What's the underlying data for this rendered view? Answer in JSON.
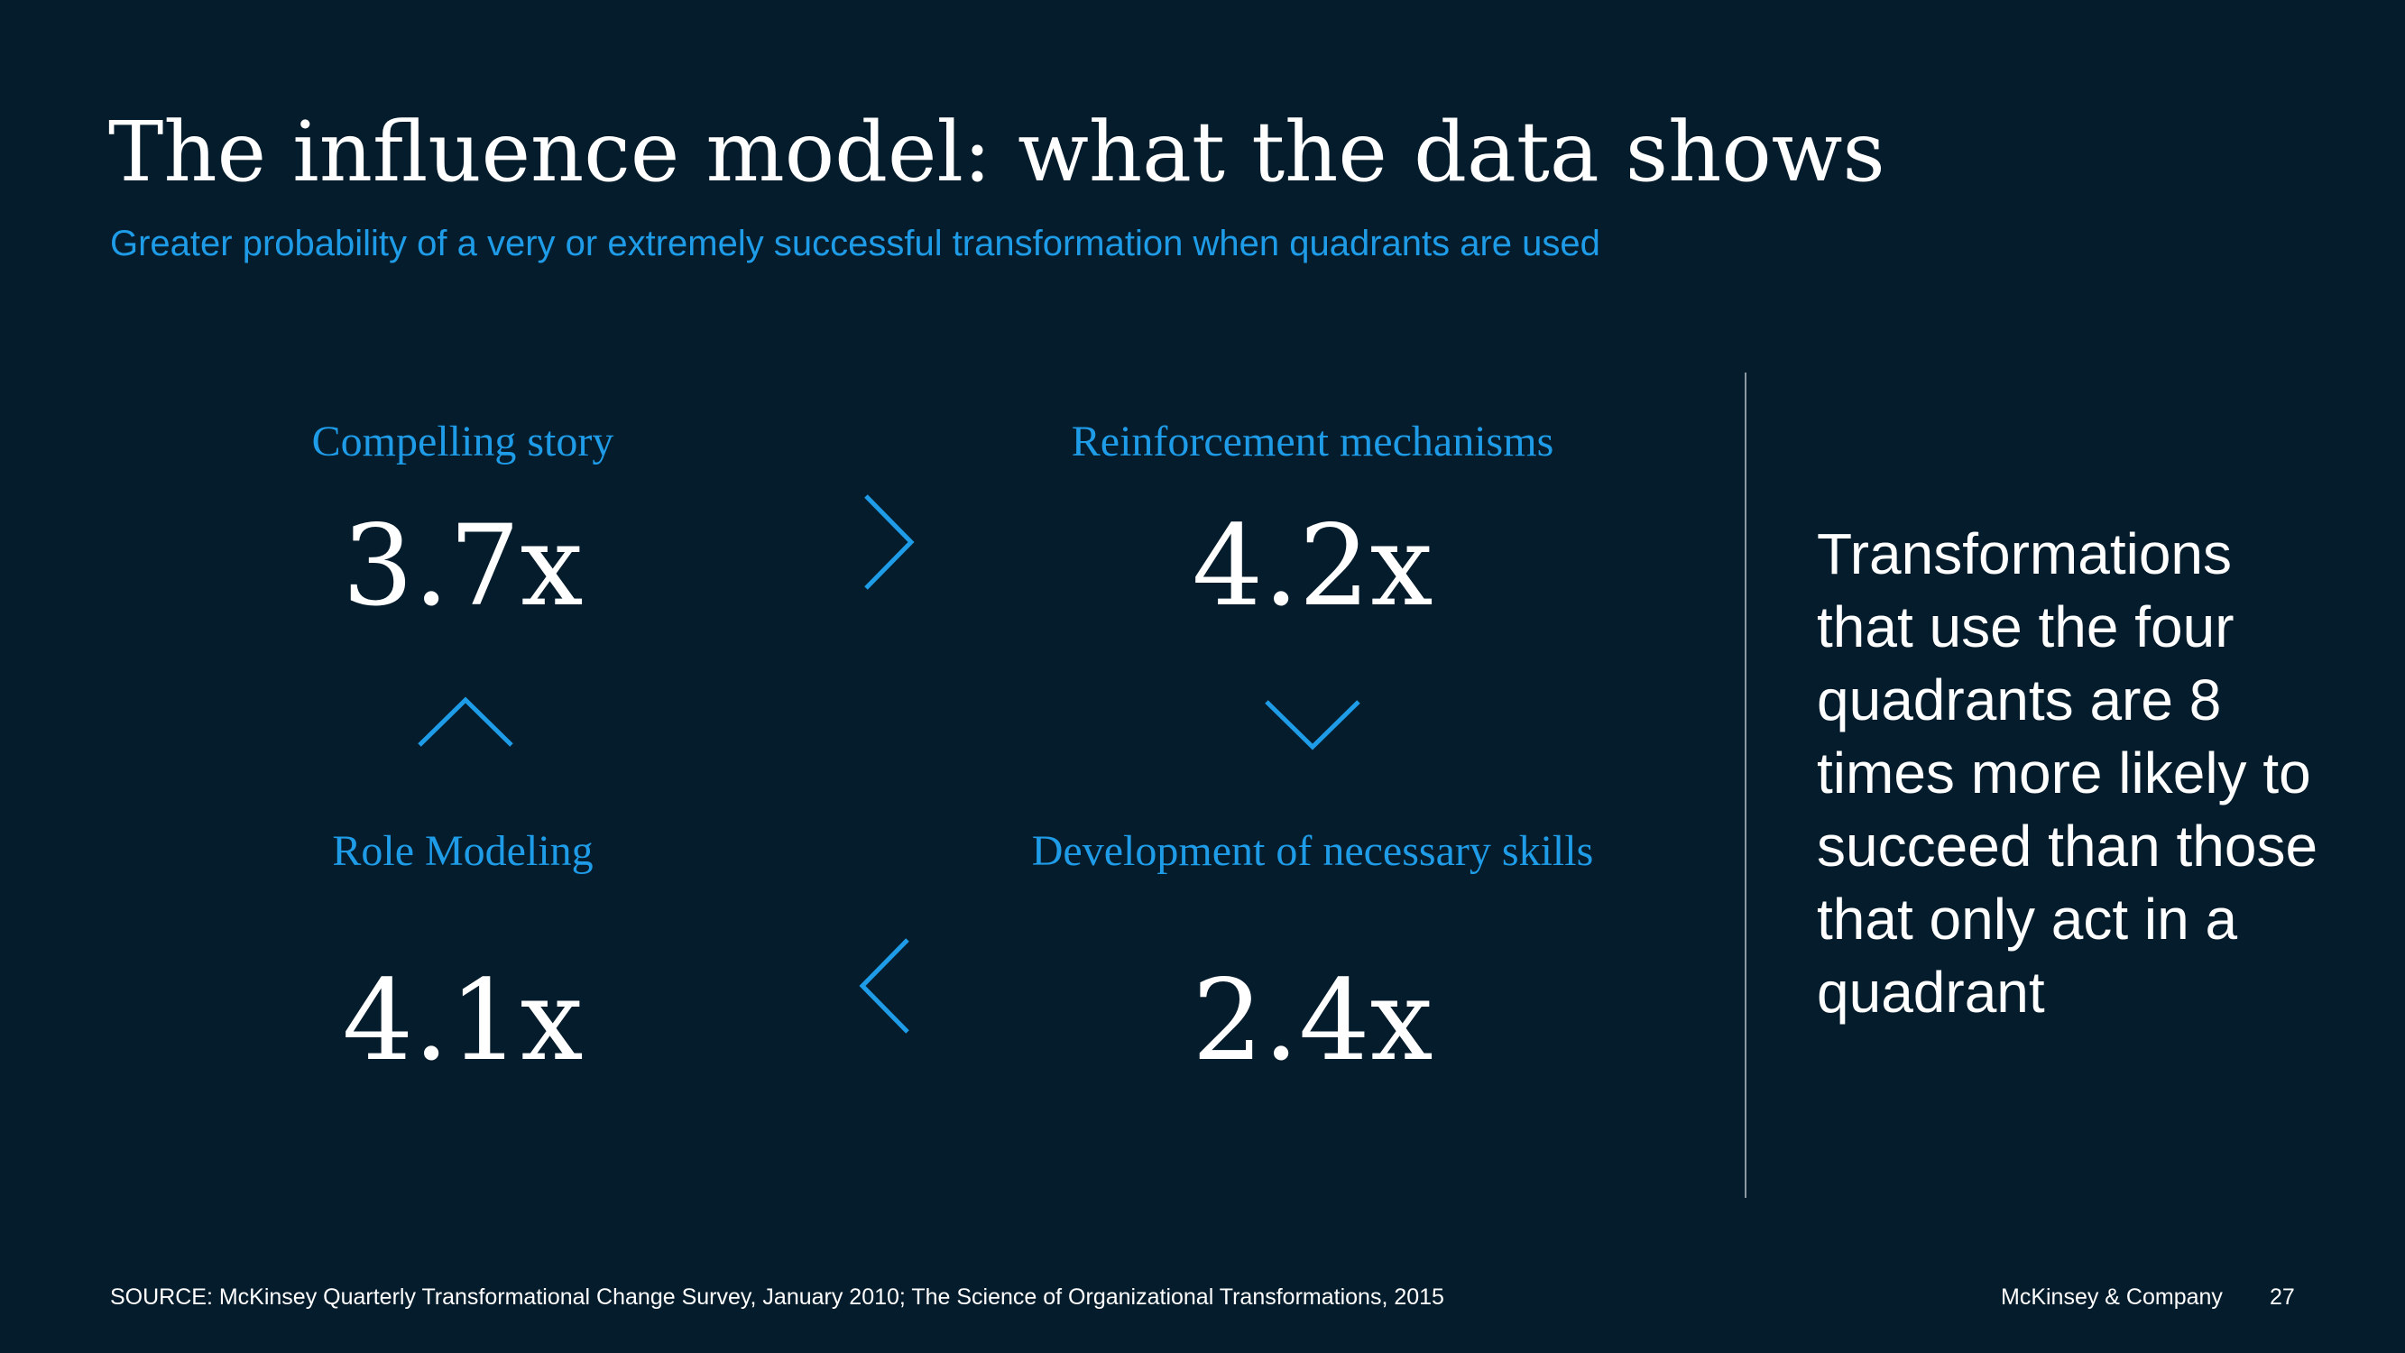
{
  "slide": {
    "title": "The influence model: what the data shows",
    "subtitle": "Greater probability of a very or extremely successful transformation when quadrants are used"
  },
  "quadrants": {
    "top_left": {
      "label": "Compelling story",
      "value": "3.7x"
    },
    "top_right": {
      "label": "Reinforcement mechanisms",
      "value": "4.2x"
    },
    "bottom_left": {
      "label": "Role Modeling",
      "value": "4.1x"
    },
    "bottom_right": {
      "label": "Development of necessary skills",
      "value": "2.4x"
    }
  },
  "arrows": {
    "top": "chevron-right-icon",
    "right": "chevron-down-icon",
    "bottom": "chevron-left-icon",
    "left": "chevron-up-icon"
  },
  "callout": {
    "text": "Transformations that use the four quadrants are 8 times more likely to succeed than those that only act in a quadrant"
  },
  "footer": {
    "source": "SOURCE: McKinsey Quarterly Transformational Change Survey, January 2010; The Science of Organizational Transformations, 2015",
    "company": "McKinsey & Company",
    "page_number": "27"
  },
  "colors": {
    "background": "#051c2c",
    "accent": "#1f9ce8",
    "text": "#ffffff",
    "divider": "#8d9aa4"
  }
}
